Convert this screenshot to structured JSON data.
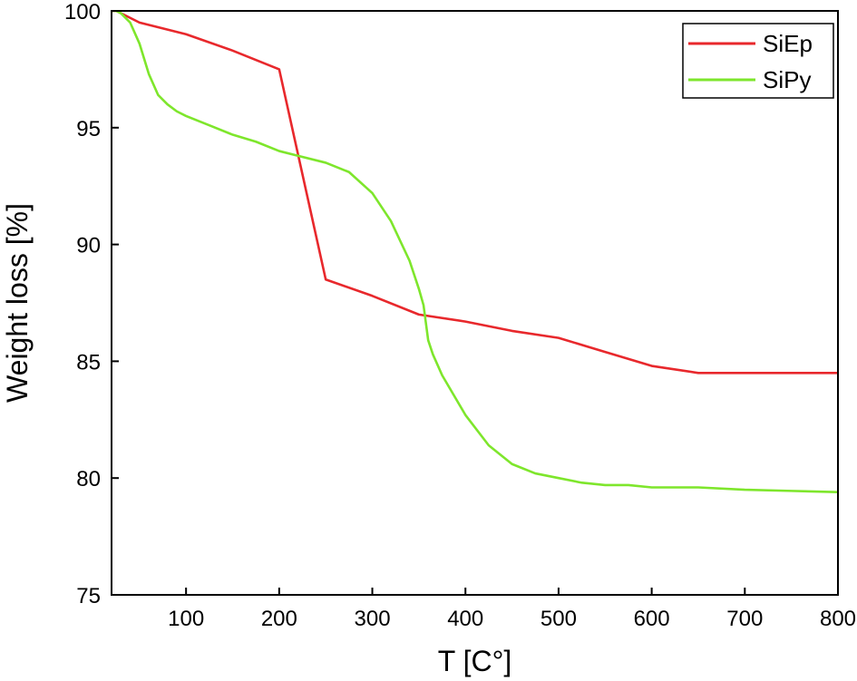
{
  "chart_data": {
    "type": "line",
    "title": "",
    "xlabel": "T [C°]",
    "ylabel": "Weight loss [%]",
    "xlim": [
      20,
      800
    ],
    "ylim": [
      75,
      100
    ],
    "xticks": [
      100,
      200,
      300,
      400,
      500,
      600,
      700,
      800
    ],
    "yticks": [
      75,
      80,
      85,
      90,
      95,
      100
    ],
    "xtick_labels": [
      "100",
      "200",
      "300",
      "400",
      "500",
      "600",
      "700",
      "800"
    ],
    "ytick_labels": [
      "75",
      "80",
      "85",
      "90",
      "95",
      "100"
    ],
    "grid": false,
    "legend_position": "top-right",
    "series": [
      {
        "name": "SiEp",
        "color": "#e8282c",
        "x": [
          20,
          25,
          50,
          100,
          150,
          200,
          250,
          300,
          350,
          400,
          450,
          500,
          550,
          600,
          650,
          700,
          750,
          800
        ],
        "y": [
          100,
          100,
          99.5,
          99.0,
          98.3,
          97.5,
          88.5,
          87.8,
          87.0,
          86.7,
          86.3,
          86.0,
          85.4,
          84.8,
          84.5,
          84.5,
          84.5,
          84.5
        ]
      },
      {
        "name": "SiPy",
        "color": "#7ee62c",
        "x": [
          20,
          25,
          30,
          40,
          50,
          60,
          70,
          80,
          90,
          100,
          125,
          150,
          175,
          200,
          220,
          250,
          275,
          300,
          320,
          340,
          350,
          355,
          358,
          360,
          365,
          375,
          400,
          425,
          450,
          475,
          500,
          525,
          550,
          575,
          600,
          650,
          700,
          750,
          800
        ],
        "y": [
          100,
          100,
          99.9,
          99.5,
          98.6,
          97.3,
          96.4,
          96.0,
          95.7,
          95.5,
          95.1,
          94.7,
          94.4,
          94.0,
          93.8,
          93.5,
          93.1,
          92.2,
          91.0,
          89.3,
          88.1,
          87.4,
          86.5,
          85.9,
          85.3,
          84.4,
          82.7,
          81.4,
          80.6,
          80.2,
          80.0,
          79.8,
          79.7,
          79.7,
          79.6,
          79.6,
          79.5,
          79.45,
          79.4
        ]
      }
    ]
  }
}
